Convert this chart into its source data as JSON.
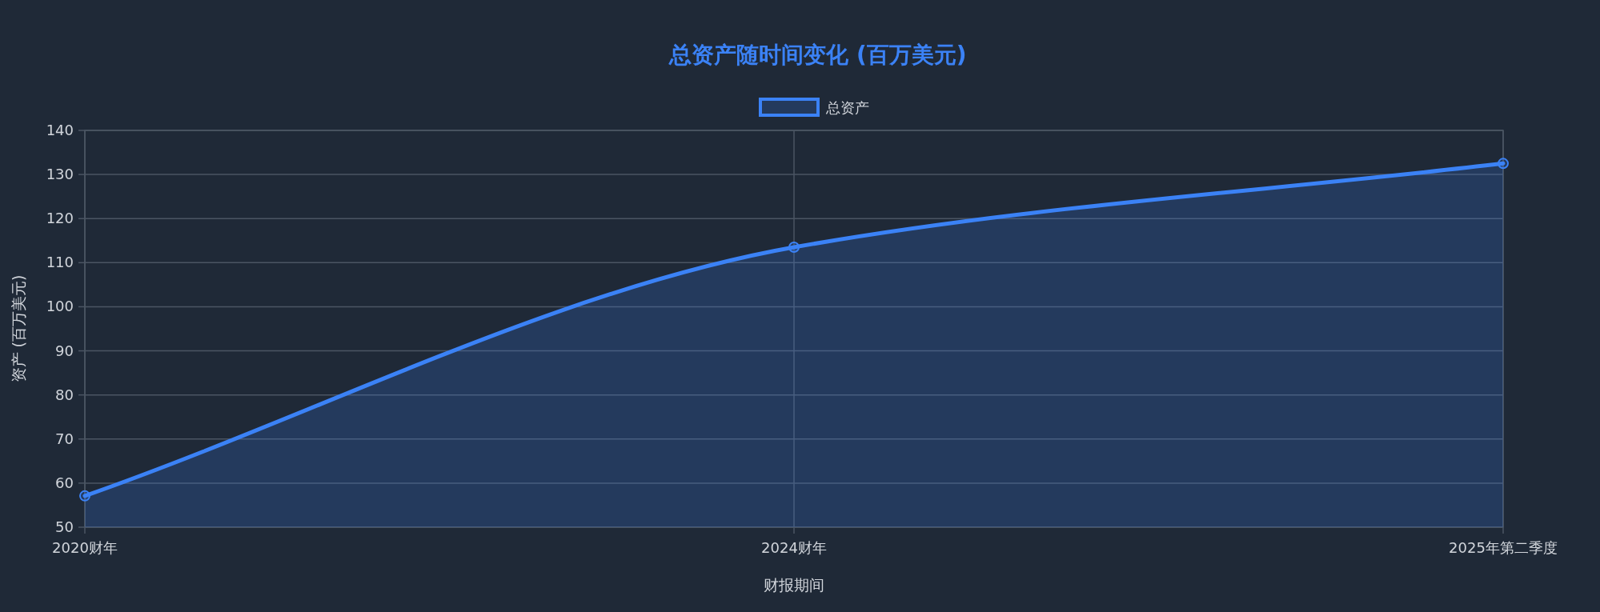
{
  "chart_data": {
    "type": "area",
    "title": "总资产随时间变化 (百万美元)",
    "xlabel": "财报期间",
    "ylabel": "资产 (百万美元)",
    "categories": [
      "2020财年",
      "2024财年",
      "2025年第二季度"
    ],
    "series": [
      {
        "name": "总资产",
        "color": "#3b82f6",
        "values": [
          57.1,
          113.5,
          132.5
        ]
      }
    ],
    "ylim": [
      50,
      140
    ],
    "yticks": [
      50,
      60,
      70,
      80,
      90,
      100,
      110,
      120,
      130,
      140
    ],
    "grid": true,
    "legend": "top",
    "marker": "circle",
    "line_style": "solid"
  }
}
